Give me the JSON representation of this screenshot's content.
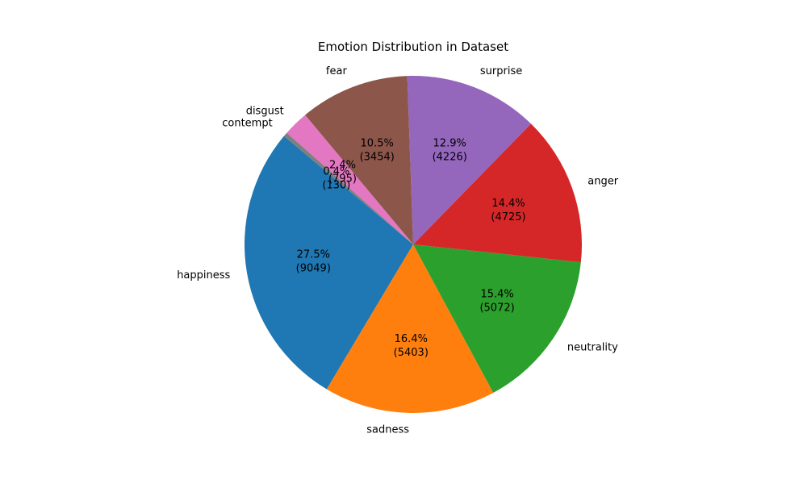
{
  "chart_data": {
    "type": "pie",
    "title": "Emotion Distribution in Dataset",
    "slices": [
      {
        "label": "happiness",
        "value": 9049,
        "percent_text": "27.5%",
        "count_text": "(9049)",
        "color": "#1f77b4"
      },
      {
        "label": "sadness",
        "value": 5403,
        "percent_text": "16.4%",
        "count_text": "(5403)",
        "color": "#ff7f0e"
      },
      {
        "label": "neutrality",
        "value": 5072,
        "percent_text": "15.4%",
        "count_text": "(5072)",
        "color": "#2ca02c"
      },
      {
        "label": "anger",
        "value": 4725,
        "percent_text": "14.4%",
        "count_text": "(4725)",
        "color": "#d62728"
      },
      {
        "label": "surprise",
        "value": 4226,
        "percent_text": "12.9%",
        "count_text": "(4226)",
        "color": "#9467bd"
      },
      {
        "label": "fear",
        "value": 3454,
        "percent_text": "10.5%",
        "count_text": "(3454)",
        "color": "#8c564b"
      },
      {
        "label": "disgust",
        "value": 795,
        "percent_text": "2.4%",
        "count_text": "(795)",
        "color": "#e377c2"
      },
      {
        "label": "contempt",
        "value": 130,
        "percent_text": "0.4%",
        "count_text": "(130)",
        "color": "#7f7f7f"
      }
    ],
    "start_angle_deg": 140,
    "direction": "counterclockwise",
    "legend": "none"
  }
}
